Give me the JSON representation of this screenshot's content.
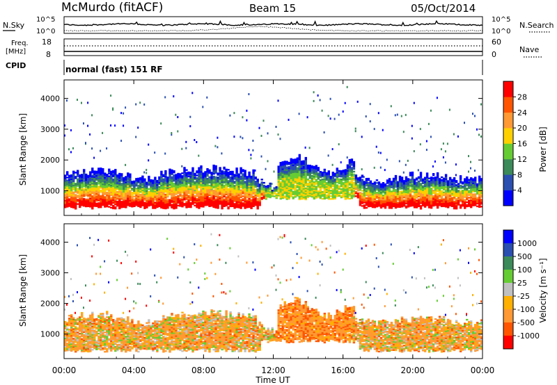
{
  "header": {
    "title": "McMurdo (fitACF)",
    "beam": "Beam 15",
    "date": "05/Oct/2014"
  },
  "noise_panel": {
    "left_label": "N.Sky",
    "right_label": "N.Search",
    "left_ticks": [
      "10^5",
      "10^0"
    ],
    "right_ticks": [
      "10^5",
      "10^0"
    ]
  },
  "freq_panel": {
    "left_label_1": "Freq.",
    "left_label_2": "[MHz]",
    "left_ticks": [
      "18",
      "8"
    ],
    "right_label": "Nave",
    "right_ticks": [
      "60",
      "0"
    ]
  },
  "cpid_panel": {
    "label": "CPID",
    "text": "normal (fast) 151 RF"
  },
  "x_axis": {
    "label": "Time UT",
    "ticks": [
      "00:00",
      "04:00",
      "08:00",
      "12:00",
      "16:00",
      "20:00",
      "00:00"
    ]
  },
  "colors": {
    "power_scale": [
      "#0000ff",
      "#2a4fb0",
      "#3c8a5a",
      "#66cc33",
      "#ffd000",
      "#ff9933",
      "#ff5500",
      "#ff0000"
    ],
    "velocity_scale": [
      "#ff0000",
      "#ff5500",
      "#ff9933",
      "#ffb000",
      "#c0c0c0",
      "#66cc33",
      "#3c8a5a",
      "#2a4fb0",
      "#0000ff"
    ]
  },
  "chart_data": [
    {
      "type": "heatmap",
      "title": "Power",
      "ylabel": "Slant Range [km]",
      "xlabel": "Time UT",
      "yticks": [
        "1000",
        "2000",
        "3000",
        "4000"
      ],
      "ylim": [
        200,
        4600
      ],
      "xlim": [
        0,
        24
      ],
      "colorbar_label": "Power [dB]",
      "colorbar_ticks": [
        "4",
        "8",
        "12",
        "16",
        "20",
        "24",
        "28"
      ]
    },
    {
      "type": "heatmap",
      "title": "Velocity",
      "ylabel": "Slant Range [km]",
      "xlabel": "Time UT",
      "yticks": [
        "1000",
        "2000",
        "3000",
        "4000"
      ],
      "ylim": [
        200,
        4600
      ],
      "xlim": [
        0,
        24
      ],
      "colorbar_label": "Velocity [m s⁻¹]",
      "colorbar_ticks": [
        "1000",
        "500",
        "100",
        "25",
        "-25",
        "-100",
        "-500",
        "-1000"
      ]
    }
  ]
}
